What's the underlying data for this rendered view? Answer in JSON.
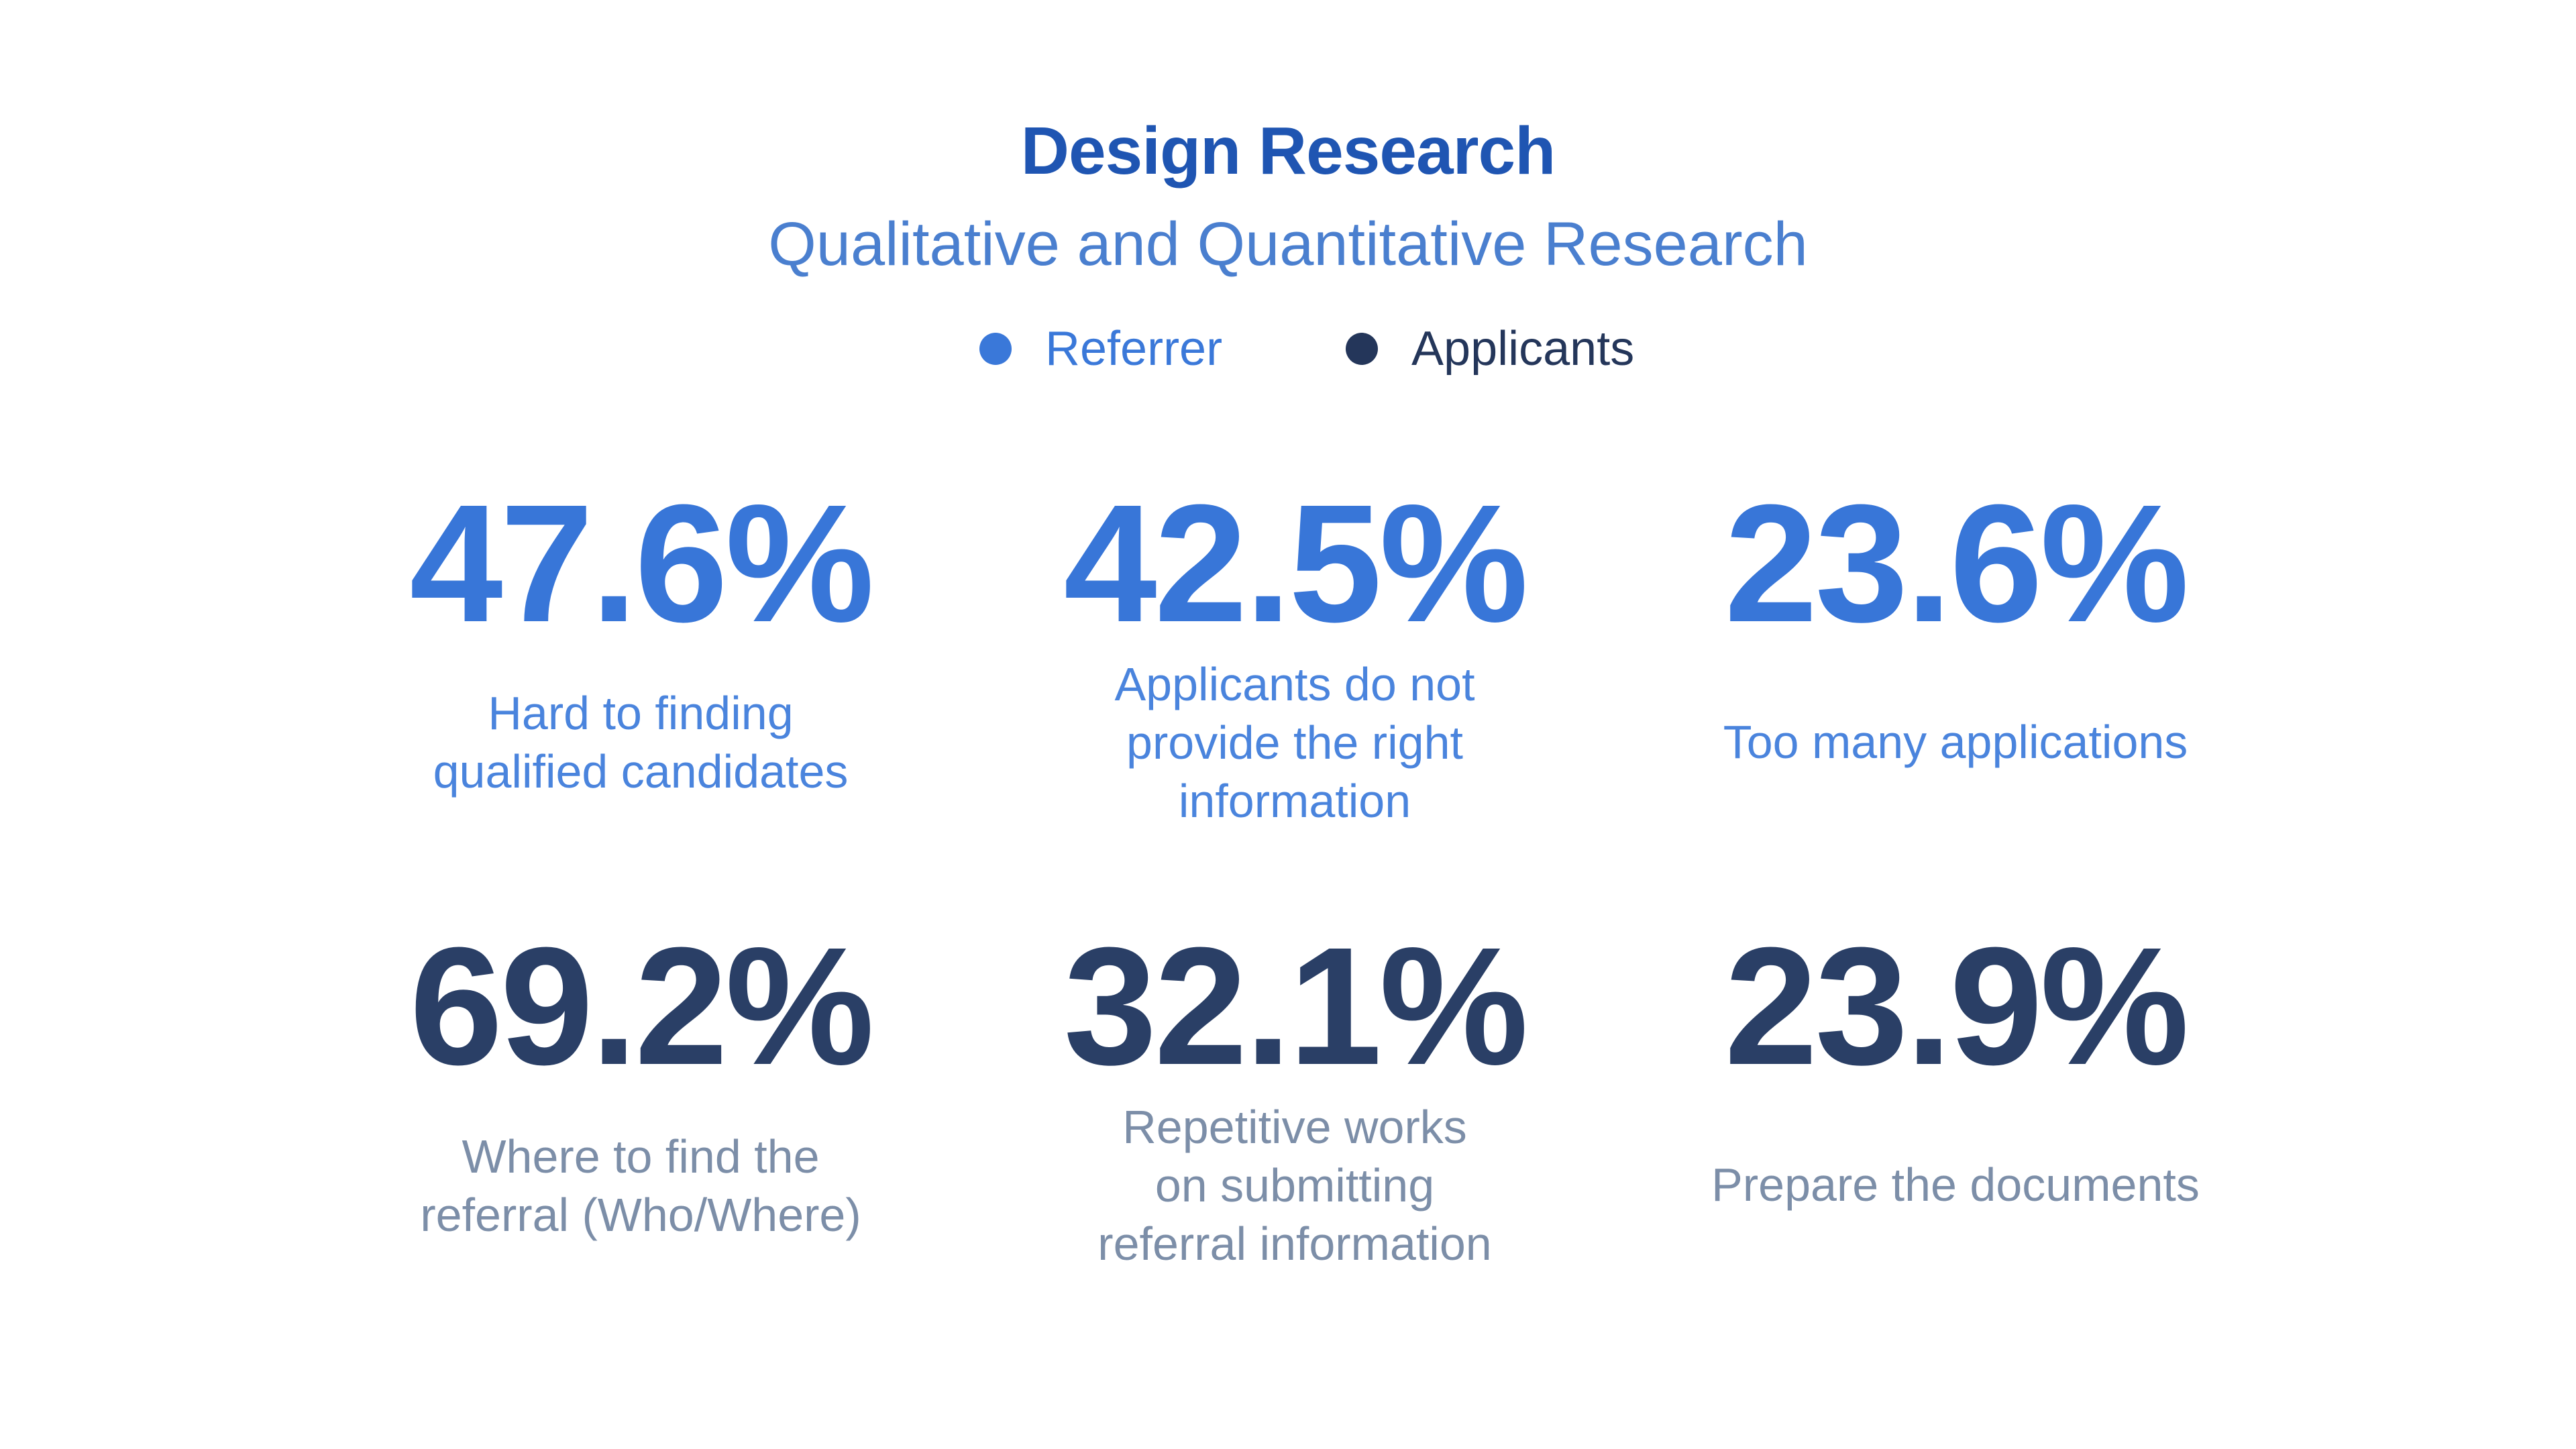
{
  "header": {
    "title": "Design Research",
    "subtitle": "Qualitative and Quantitative Research"
  },
  "legend": [
    {
      "label": "Referrer",
      "color": "#3a78d9"
    },
    {
      "label": "Applicants",
      "color": "#24365a"
    }
  ],
  "referrer_stats": [
    {
      "value": "47.6%",
      "description": "Hard to finding qualified candidates"
    },
    {
      "value": "42.5%",
      "description": "Applicants do not provide the right information"
    },
    {
      "value": "23.6%",
      "description": "Too many applications"
    }
  ],
  "applicant_stats": [
    {
      "value": "69.2%",
      "description": "Where to find the referral (Who/Where)"
    },
    {
      "value": "32.1%",
      "description": "Repetitive works on submitting referral information"
    },
    {
      "value": "23.9%",
      "description": "Prepare the documents"
    }
  ]
}
